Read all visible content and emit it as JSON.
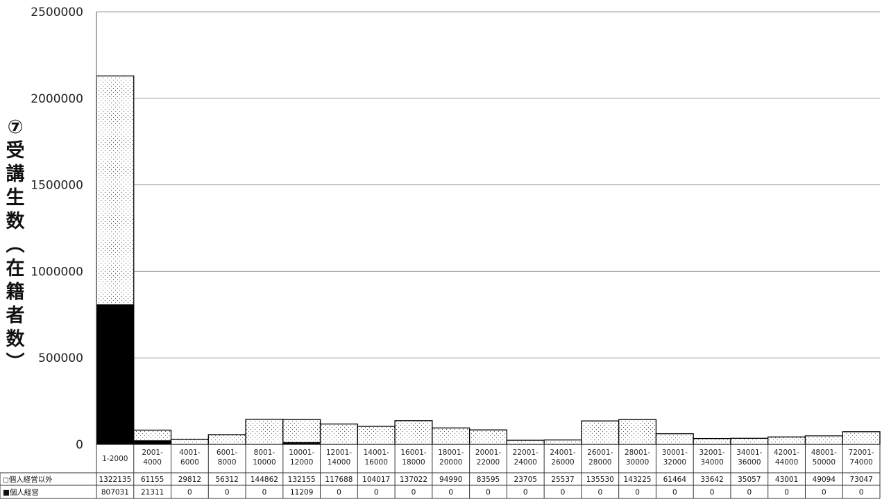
{
  "chart_data": {
    "type": "bar",
    "stacked": true,
    "ylabel": "⑦受講生数（在籍者数）",
    "ylim": [
      0,
      2500000
    ],
    "yticks": [
      "0",
      "500000",
      "1000000",
      "1500000",
      "2000000",
      "2500000"
    ],
    "grid": true,
    "categories": [
      [
        "1-2000"
      ],
      [
        "2001-",
        "4000"
      ],
      [
        "4001-",
        "6000"
      ],
      [
        "6001-",
        "8000"
      ],
      [
        "8001-",
        "10000"
      ],
      [
        "10001-",
        "12000"
      ],
      [
        "12001-",
        "14000"
      ],
      [
        "14001-",
        "16000"
      ],
      [
        "16001-",
        "18000"
      ],
      [
        "18001-",
        "20000"
      ],
      [
        "20001-",
        "22000"
      ],
      [
        "22001-",
        "24000"
      ],
      [
        "24001-",
        "26000"
      ],
      [
        "26001-",
        "28000"
      ],
      [
        "28001-",
        "30000"
      ],
      [
        "30001-",
        "32000"
      ],
      [
        "32001-",
        "34000"
      ],
      [
        "34001-",
        "36000"
      ],
      [
        "42001-",
        "44000"
      ],
      [
        "48001-",
        "50000"
      ],
      [
        "72001-",
        "74000"
      ]
    ],
    "series": [
      {
        "name": "個人経営",
        "marker": "■",
        "fill": "#000000",
        "values": [
          807031,
          21311,
          0,
          0,
          0,
          11209,
          0,
          0,
          0,
          0,
          0,
          0,
          0,
          0,
          0,
          0,
          0,
          0,
          0,
          0,
          0
        ]
      },
      {
        "name": "個人経営以外",
        "marker": "◻",
        "fill": "dotted",
        "values": [
          1322135,
          61155,
          29812,
          56312,
          144862,
          132155,
          117688,
          104017,
          137022,
          94990,
          83595,
          23705,
          25537,
          135530,
          143225,
          61464,
          33642,
          35057,
          43001,
          49094,
          73047
        ]
      }
    ],
    "data_table": true
  }
}
